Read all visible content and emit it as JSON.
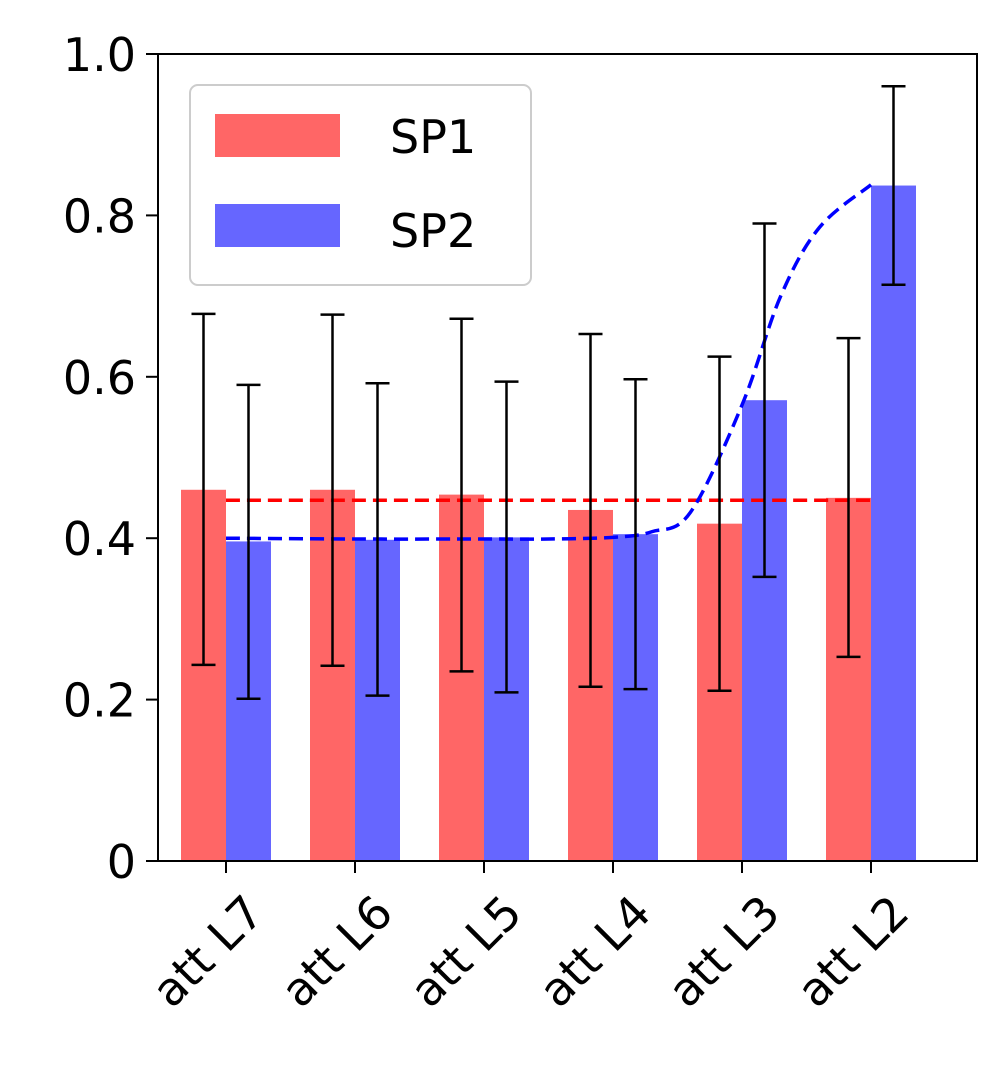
{
  "chart_data": {
    "type": "bar",
    "categories": [
      "att L7",
      "att L6",
      "att L5",
      "att L4",
      "att L3",
      "att L2"
    ],
    "series": [
      {
        "name": "SP1",
        "color": "#ff6666",
        "values": [
          0.46,
          0.46,
          0.454,
          0.435,
          0.418,
          0.45
        ],
        "err_low": [
          0.243,
          0.242,
          0.235,
          0.216,
          0.211,
          0.253
        ],
        "err_high": [
          0.678,
          0.677,
          0.672,
          0.653,
          0.625,
          0.648
        ]
      },
      {
        "name": "SP2",
        "color": "#6666ff",
        "values": [
          0.396,
          0.398,
          0.401,
          0.405,
          0.571,
          0.837
        ],
        "err_low": [
          0.201,
          0.205,
          0.209,
          0.213,
          0.352,
          0.714
        ],
        "err_high": [
          0.59,
          0.592,
          0.594,
          0.597,
          0.79,
          0.96
        ]
      }
    ],
    "trend_lines": [
      {
        "series": "SP1",
        "color": "#ff0000",
        "style": "dashed",
        "x": [
          0,
          5
        ],
        "y": [
          0.447,
          0.447
        ]
      },
      {
        "series": "SP2",
        "color": "#0000ff",
        "style": "dashed",
        "x": [
          0,
          1,
          2,
          2.5,
          3,
          3.3,
          3.6,
          4,
          4.3,
          4.6,
          5
        ],
        "y": [
          0.4,
          0.399,
          0.399,
          0.399,
          0.401,
          0.408,
          0.432,
          0.565,
          0.7,
          0.785,
          0.838
        ]
      }
    ],
    "title": "",
    "xlabel": "",
    "ylabel": "",
    "ylim": [
      0,
      1.0
    ],
    "yticks": [
      0,
      0.2,
      0.4,
      0.6,
      0.8,
      1.0
    ],
    "ytick_labels": [
      "0",
      "0.2",
      "0.4",
      "0.6",
      "0.8",
      "1.0"
    ],
    "legend": {
      "placement": "top-left",
      "entries": [
        "SP1",
        "SP2"
      ]
    },
    "grid": false
  }
}
